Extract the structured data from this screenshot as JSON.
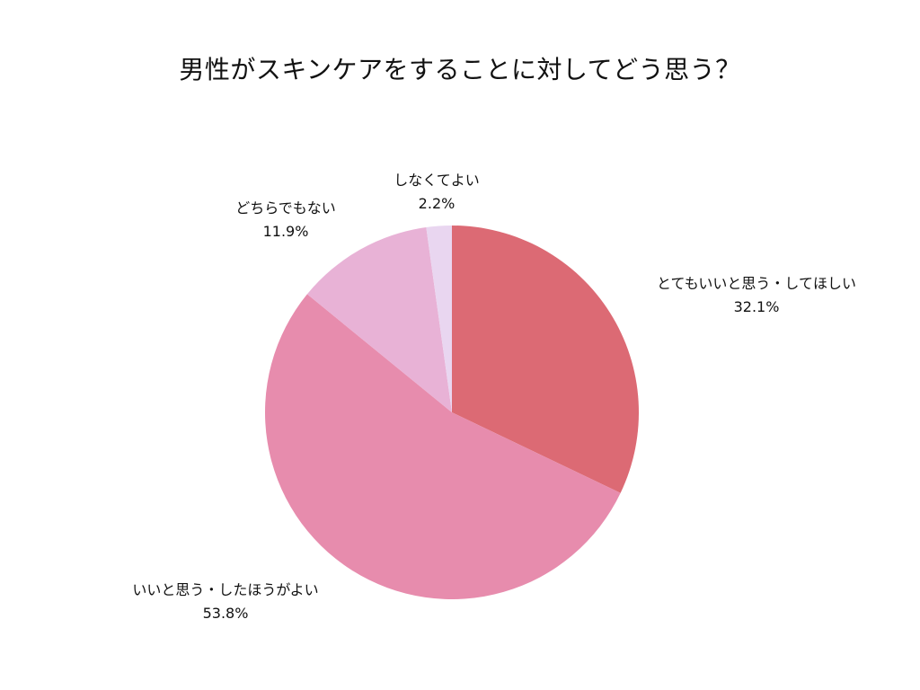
{
  "chart_data": {
    "type": "pie",
    "title": "男性がスキンケアをすることに対してどう思う？",
    "slices": [
      {
        "label": "とてもいいと思う・してほしい",
        "value": 32.1,
        "value_label": "32.1%",
        "color": "#dc6a74"
      },
      {
        "label": "いいと思う・したほうがよい",
        "value": 53.8,
        "value_label": "53.8%",
        "color": "#e78cad"
      },
      {
        "label": "どちらでもない",
        "value": 11.9,
        "value_label": "11.9%",
        "color": "#e8b2d6"
      },
      {
        "label": "しなくてよい",
        "value": 2.2,
        "value_label": "2.2%",
        "color": "#e9d6f0"
      }
    ],
    "start_angle": "12 o'clock",
    "direction": "clockwise",
    "legend": "none"
  }
}
